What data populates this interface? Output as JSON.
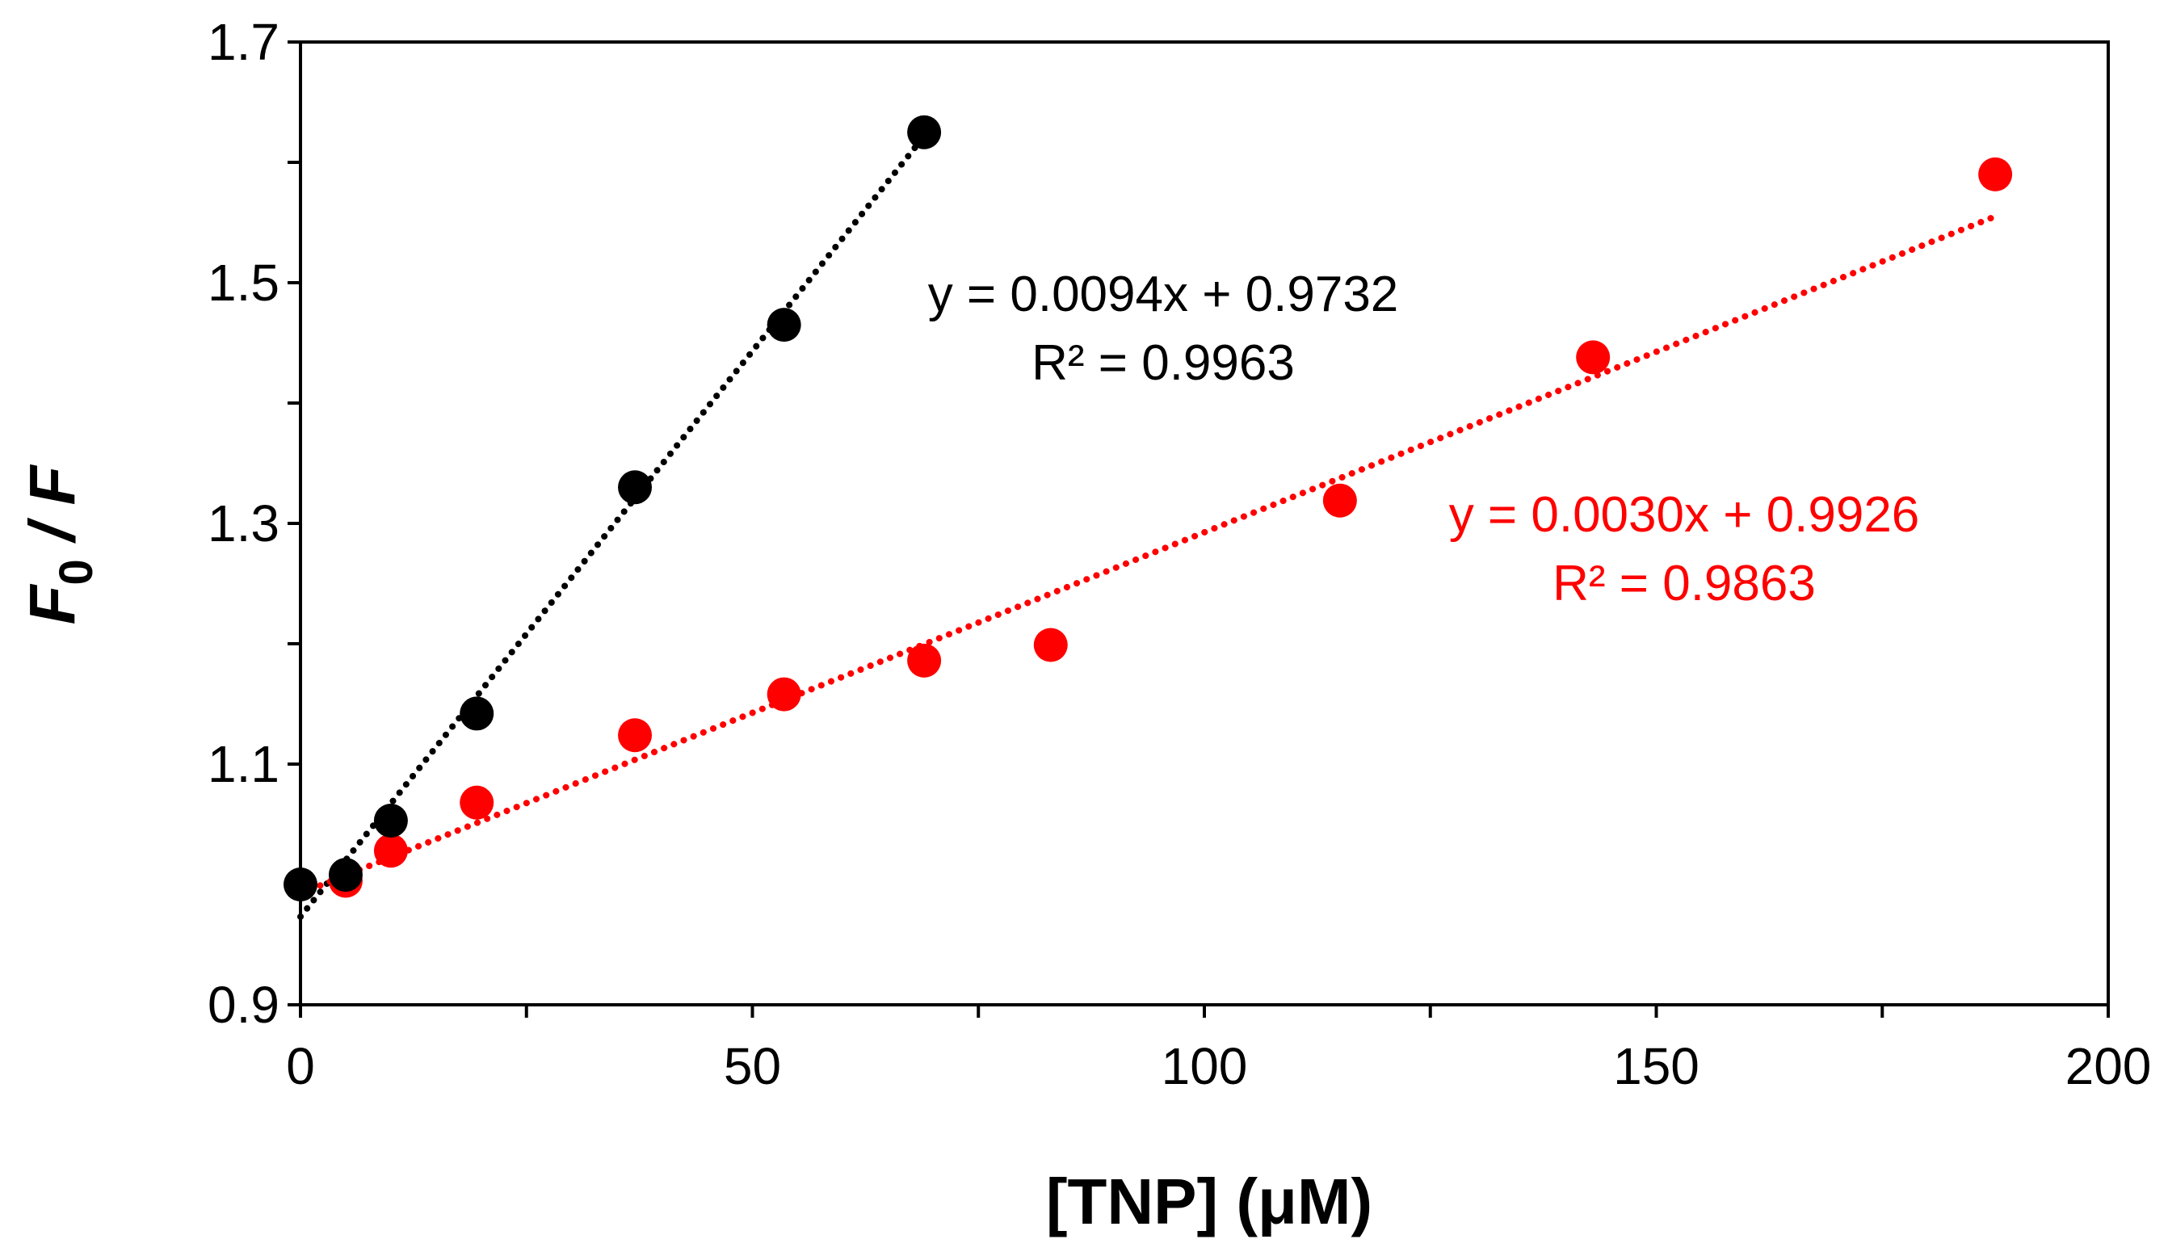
{
  "chart_data": {
    "type": "scatter",
    "title": "",
    "xlabel": "[TNP] (μM)",
    "ylabel_main": "F",
    "ylabel_sub": "0",
    "ylabel_rest": " / F",
    "xlim": [
      0,
      200
    ],
    "ylim": [
      0.9,
      1.7
    ],
    "x_ticks": [
      0,
      50,
      100,
      150,
      200
    ],
    "x_minor_ticks": [
      25,
      75,
      125,
      175
    ],
    "y_ticks": [
      0.9,
      1.1,
      1.3,
      1.5,
      1.7
    ],
    "y_tick_labels": [
      "0.9",
      "1.1",
      "1.3",
      "1.5",
      "1.7"
    ],
    "y_minor_ticks": [
      1.0,
      1.2,
      1.4,
      1.6
    ],
    "grid": false,
    "series": [
      {
        "name": "black",
        "color": "#000000",
        "x": [
          0,
          5,
          10,
          19.5,
          37,
          53.5,
          69
        ],
        "y": [
          1.0,
          1.008,
          1.053,
          1.142,
          1.33,
          1.465,
          1.625
        ],
        "trendline": {
          "slope": 0.0094,
          "intercept": 0.9732,
          "x_range": [
            0,
            69
          ]
        },
        "equation": "y = 0.0094x + 0.9732",
        "r2": "R² = 0.9963"
      },
      {
        "name": "red",
        "color": "#ff0000",
        "x": [
          5,
          10,
          19.5,
          37,
          53.5,
          69,
          83,
          115,
          143,
          187.5
        ],
        "y": [
          1.003,
          1.028,
          1.068,
          1.124,
          1.158,
          1.186,
          1.199,
          1.319,
          1.438,
          1.59
        ],
        "trendline": {
          "slope": 0.003,
          "intercept": 0.9926,
          "x_range": [
            0,
            187.5
          ]
        },
        "equation": "y = 0.0030x + 0.9926",
        "r2": "R² = 0.9863"
      }
    ]
  }
}
